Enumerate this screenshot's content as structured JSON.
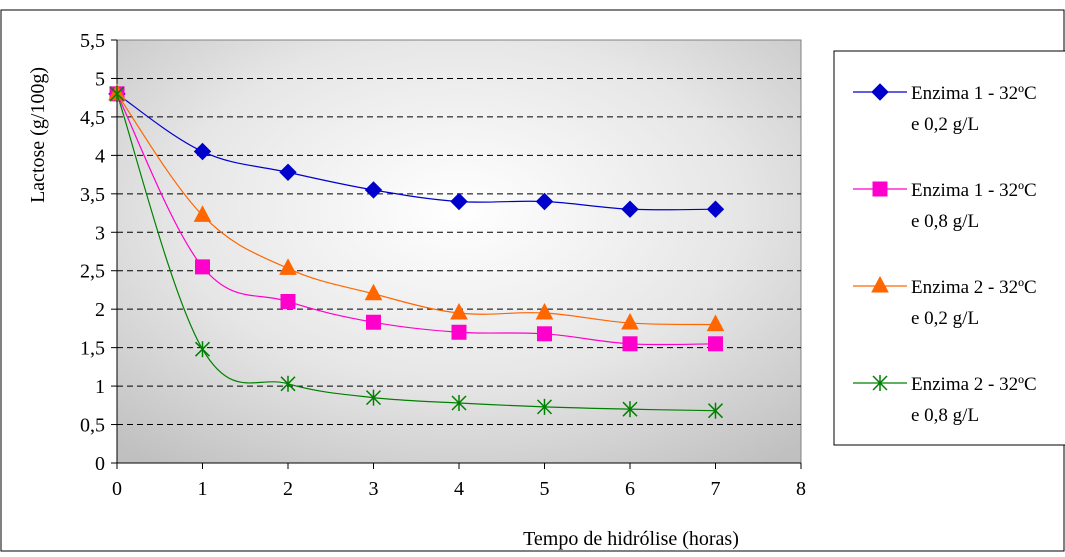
{
  "chart_data": {
    "type": "line",
    "xlabel": "Tempo de hidrólise (horas)",
    "ylabel": "Lactose (g/100g)",
    "xlim": [
      0,
      8
    ],
    "ylim": [
      0,
      5.5
    ],
    "x_ticks": [
      "0",
      "1",
      "2",
      "3",
      "4",
      "5",
      "6",
      "7",
      "8"
    ],
    "y_ticks": [
      "0",
      "0,5",
      "1",
      "1,5",
      "2",
      "2,5",
      "3",
      "3,5",
      "4",
      "4,5",
      "5",
      "5,5"
    ],
    "grid": "horizontal dashed",
    "legend_position": "right",
    "x": [
      0,
      1,
      2,
      3,
      4,
      5,
      6,
      7
    ],
    "series": [
      {
        "name_line1": "Enzima 1 - 32ºC",
        "name_line2": "e 0,2 g/L",
        "color": "#0000CC",
        "marker": "diamond",
        "values": [
          4.8,
          4.05,
          3.78,
          3.55,
          3.4,
          3.4,
          3.3,
          3.3
        ]
      },
      {
        "name_line1": "Enzima 1 - 32ºC",
        "name_line2": "e 0,8 g/L",
        "color": "#FF00CC",
        "marker": "square",
        "values": [
          4.8,
          2.55,
          2.1,
          1.83,
          1.7,
          1.68,
          1.55,
          1.55
        ]
      },
      {
        "name_line1": "Enzima 2 - 32ºC",
        "name_line2": "e 0,2 g/L",
        "color": "#FF6600",
        "marker": "triangle",
        "values": [
          4.8,
          3.22,
          2.53,
          2.2,
          1.95,
          1.95,
          1.82,
          1.8
        ]
      },
      {
        "name_line1": "Enzima 2 - 32ºC",
        "name_line2": "e 0,8 g/L",
        "color": "#008000",
        "marker": "asterisk",
        "values": [
          4.8,
          1.48,
          1.03,
          0.85,
          0.78,
          0.73,
          0.7,
          0.68
        ]
      }
    ]
  }
}
